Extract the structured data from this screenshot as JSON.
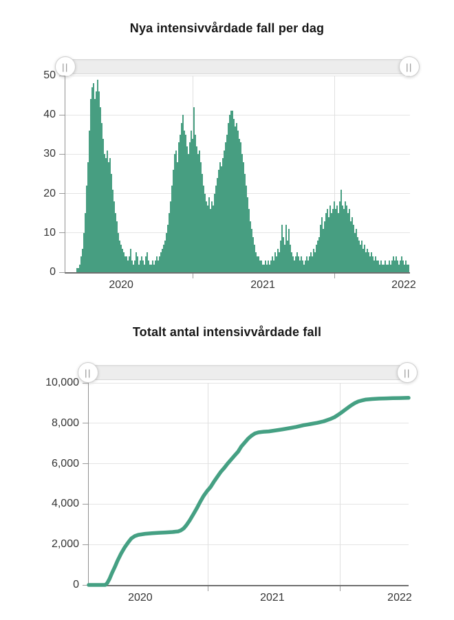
{
  "slider": {
    "handle_glyph": "||"
  },
  "colors": {
    "series": "#479e81",
    "axis": "#6e6e6e",
    "grid": "#e4e4e4",
    "tick_text": "#333333"
  },
  "chart_data": [
    {
      "type": "bar",
      "title": "Nya intensivvårdade fall per dag",
      "xlabel": "",
      "ylabel": "",
      "ylim": [
        0,
        50
      ],
      "grid": true,
      "color": "#479e81",
      "y_ticks": [
        {
          "label": "50",
          "value": 50
        },
        {
          "label": "40",
          "value": 40
        },
        {
          "label": "30",
          "value": 30
        },
        {
          "label": "20",
          "value": 20
        },
        {
          "label": "10",
          "value": 10
        },
        {
          "label": "0",
          "value": 0
        }
      ],
      "x_ticks": [
        {
          "label": "2020",
          "pos": 0.162
        },
        {
          "label": "2021",
          "pos": 0.573
        },
        {
          "label": "2022",
          "pos": 0.982
        }
      ],
      "x_tick_marks": [
        0.371,
        0.782
      ],
      "values": [
        0,
        0,
        0,
        0,
        0,
        0,
        0,
        0,
        1,
        1,
        2,
        4,
        6,
        10,
        15,
        22,
        28,
        36,
        44,
        47,
        48,
        44,
        46,
        49,
        46,
        42,
        38,
        34,
        30,
        29,
        31,
        28,
        29,
        25,
        21,
        18,
        15,
        13,
        10,
        8,
        7,
        6,
        5,
        4,
        4,
        3,
        4,
        6,
        3,
        2,
        3,
        5,
        4,
        2,
        3,
        4,
        3,
        2,
        4,
        5,
        3,
        2,
        2,
        3,
        2,
        3,
        4,
        3,
        4,
        5,
        6,
        7,
        8,
        10,
        12,
        15,
        18,
        22,
        26,
        30,
        31,
        28,
        33,
        35,
        38,
        40,
        36,
        35,
        32,
        30,
        33,
        36,
        34,
        42,
        35,
        32,
        30,
        31,
        28,
        25,
        22,
        20,
        18,
        17,
        19,
        16,
        18,
        17,
        20,
        22,
        24,
        26,
        28,
        27,
        29,
        31,
        33,
        35,
        38,
        40,
        41,
        41,
        39,
        37,
        38,
        36,
        34,
        33,
        30,
        28,
        25,
        22,
        19,
        16,
        13,
        11,
        9,
        7,
        5,
        4,
        4,
        3,
        3,
        2,
        2,
        3,
        2,
        3,
        2,
        3,
        4,
        3,
        5,
        4,
        6,
        5,
        8,
        12,
        9,
        7,
        12,
        8,
        11,
        7,
        5,
        4,
        3,
        4,
        5,
        4,
        3,
        4,
        3,
        2,
        3,
        4,
        3,
        4,
        5,
        4,
        6,
        5,
        7,
        8,
        9,
        12,
        14,
        11,
        13,
        15,
        16,
        14,
        17,
        15,
        16,
        18,
        16,
        17,
        15,
        18,
        21,
        17,
        16,
        18,
        17,
        15,
        16,
        13,
        14,
        12,
        10,
        11,
        9,
        8,
        7,
        8,
        6,
        7,
        5,
        6,
        5,
        4,
        5,
        4,
        3,
        4,
        3,
        3,
        2,
        3,
        2,
        2,
        3,
        2,
        2,
        3,
        2,
        3,
        4,
        3,
        4,
        3,
        2,
        3,
        4,
        3,
        2,
        3,
        2,
        2
      ]
    },
    {
      "type": "line",
      "title": "Totalt antal intensivvårdade fall",
      "xlabel": "",
      "ylabel": "",
      "ylim": [
        0,
        10000
      ],
      "grid": true,
      "color": "#45a083",
      "y_ticks": [
        {
          "label": "10,000",
          "value": 10000
        },
        {
          "label": "8,000",
          "value": 8000
        },
        {
          "label": "6,000",
          "value": 6000
        },
        {
          "label": "4,000",
          "value": 4000
        },
        {
          "label": "2,000",
          "value": 2000
        },
        {
          "label": "0",
          "value": 0
        }
      ],
      "x_ticks": [
        {
          "label": "2020",
          "pos": 0.161
        },
        {
          "label": "2021",
          "pos": 0.574
        },
        {
          "label": "2022",
          "pos": 0.972
        }
      ],
      "x_tick_marks": [
        0.374,
        0.785
      ],
      "points": [
        [
          0.0,
          0
        ],
        [
          0.052,
          0
        ],
        [
          0.058,
          100
        ],
        [
          0.065,
          300
        ],
        [
          0.073,
          600
        ],
        [
          0.082,
          900
        ],
        [
          0.09,
          1200
        ],
        [
          0.101,
          1550
        ],
        [
          0.112,
          1850
        ],
        [
          0.123,
          2100
        ],
        [
          0.133,
          2300
        ],
        [
          0.144,
          2420
        ],
        [
          0.155,
          2480
        ],
        [
          0.176,
          2530
        ],
        [
          0.198,
          2560
        ],
        [
          0.219,
          2580
        ],
        [
          0.241,
          2600
        ],
        [
          0.262,
          2620
        ],
        [
          0.28,
          2650
        ],
        [
          0.288,
          2700
        ],
        [
          0.297,
          2800
        ],
        [
          0.305,
          2950
        ],
        [
          0.316,
          3200
        ],
        [
          0.327,
          3500
        ],
        [
          0.338,
          3800
        ],
        [
          0.348,
          4100
        ],
        [
          0.359,
          4400
        ],
        [
          0.37,
          4650
        ],
        [
          0.381,
          4850
        ],
        [
          0.391,
          5100
        ],
        [
          0.402,
          5350
        ],
        [
          0.413,
          5600
        ],
        [
          0.424,
          5800
        ],
        [
          0.434,
          6000
        ],
        [
          0.445,
          6200
        ],
        [
          0.456,
          6400
        ],
        [
          0.467,
          6600
        ],
        [
          0.477,
          6850
        ],
        [
          0.488,
          7050
        ],
        [
          0.499,
          7250
        ],
        [
          0.51,
          7400
        ],
        [
          0.52,
          7500
        ],
        [
          0.531,
          7550
        ],
        [
          0.546,
          7580
        ],
        [
          0.563,
          7600
        ],
        [
          0.585,
          7650
        ],
        [
          0.606,
          7700
        ],
        [
          0.628,
          7760
        ],
        [
          0.649,
          7820
        ],
        [
          0.671,
          7900
        ],
        [
          0.692,
          7960
        ],
        [
          0.714,
          8020
        ],
        [
          0.735,
          8100
        ],
        [
          0.757,
          8220
        ],
        [
          0.768,
          8300
        ],
        [
          0.778,
          8400
        ],
        [
          0.789,
          8520
        ],
        [
          0.8,
          8650
        ],
        [
          0.811,
          8780
        ],
        [
          0.822,
          8900
        ],
        [
          0.832,
          9000
        ],
        [
          0.843,
          9080
        ],
        [
          0.854,
          9130
        ],
        [
          0.865,
          9170
        ],
        [
          0.886,
          9200
        ],
        [
          0.908,
          9220
        ],
        [
          0.929,
          9230
        ],
        [
          0.95,
          9240
        ],
        [
          0.972,
          9250
        ],
        [
          1.0,
          9260
        ]
      ]
    }
  ]
}
